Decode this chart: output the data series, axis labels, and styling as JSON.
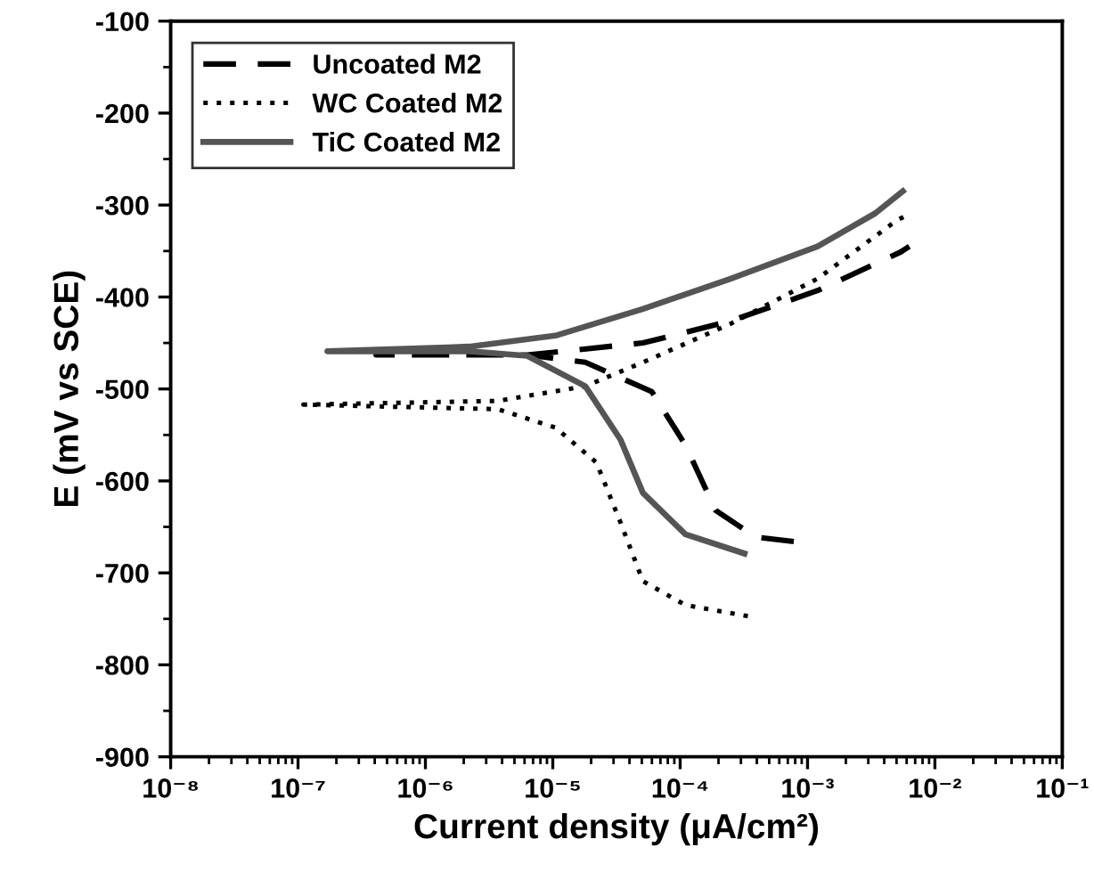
{
  "chart_data": {
    "type": "line",
    "xlabel": "Current density (μA/cm²)",
    "ylabel": "E (mV vs SCE)",
    "log": "x",
    "xlim": [
      1e-08,
      0.1
    ],
    "ylim": [
      -900,
      -100
    ],
    "xticks": [
      {
        "value": 1e-08,
        "label": "10⁻⁸"
      },
      {
        "value": 1e-07,
        "label": "10⁻⁷"
      },
      {
        "value": 1e-06,
        "label": "10⁻⁶"
      },
      {
        "value": 1e-05,
        "label": "10⁻⁵"
      },
      {
        "value": 0.0001,
        "label": "10⁻⁴"
      },
      {
        "value": 0.001,
        "label": "10⁻³"
      },
      {
        "value": 0.01,
        "label": "10⁻²"
      },
      {
        "value": 0.1,
        "label": "10⁻¹"
      }
    ],
    "yticks": [
      -900,
      -800,
      -700,
      -600,
      -500,
      -400,
      -300,
      -200,
      -100
    ],
    "grid": false,
    "legend": "top left",
    "marker": "none",
    "series": [
      {
        "name": "Uncoated M2",
        "color": "#000000",
        "line_style": "dashed",
        "x": [
          0.00078,
          0.00039,
          0.00019,
          0.00011,
          6e-05,
          1.8e-05,
          6.3e-06,
          4.1e-07,
          6.3e-06,
          5.1e-05,
          0.00025,
          0.0012,
          0.0054,
          0.0063
        ],
        "values": [
          -666,
          -661,
          -632,
          -561,
          -503,
          -471,
          -463,
          -463,
          -463,
          -450,
          -426,
          -393,
          -351,
          -345
        ]
      },
      {
        "name": "WC Coated M2",
        "color": "#000000",
        "line_style": "dotted",
        "x": [
          0.00034,
          0.00011,
          5.1e-05,
          3.4e-05,
          2.2e-05,
          1.05e-05,
          3.7e-06,
          1.1e-07,
          3.7e-06,
          1.8e-05,
          5.1e-05,
          0.00025,
          0.0012,
          0.0051,
          0.0063
        ],
        "values": [
          -747,
          -735,
          -709,
          -645,
          -580,
          -542,
          -522,
          -517,
          -513,
          -497,
          -471,
          -429,
          -380,
          -316,
          -310
        ]
      },
      {
        "name": "TiC Coated M2",
        "color": "#555555",
        "line_style": "solid",
        "x": [
          0.00032,
          0.00011,
          5.1e-05,
          3.4e-05,
          1.8e-05,
          6.3e-06,
          2.2e-06,
          1.7e-07,
          2.2e-06,
          1.05e-05,
          5.1e-05,
          0.00025,
          0.0012,
          0.0034,
          0.0056
        ],
        "values": [
          -679,
          -658,
          -613,
          -555,
          -497,
          -464,
          -459,
          -459,
          -454,
          -442,
          -413,
          -380,
          -345,
          -309,
          -285
        ]
      }
    ]
  }
}
